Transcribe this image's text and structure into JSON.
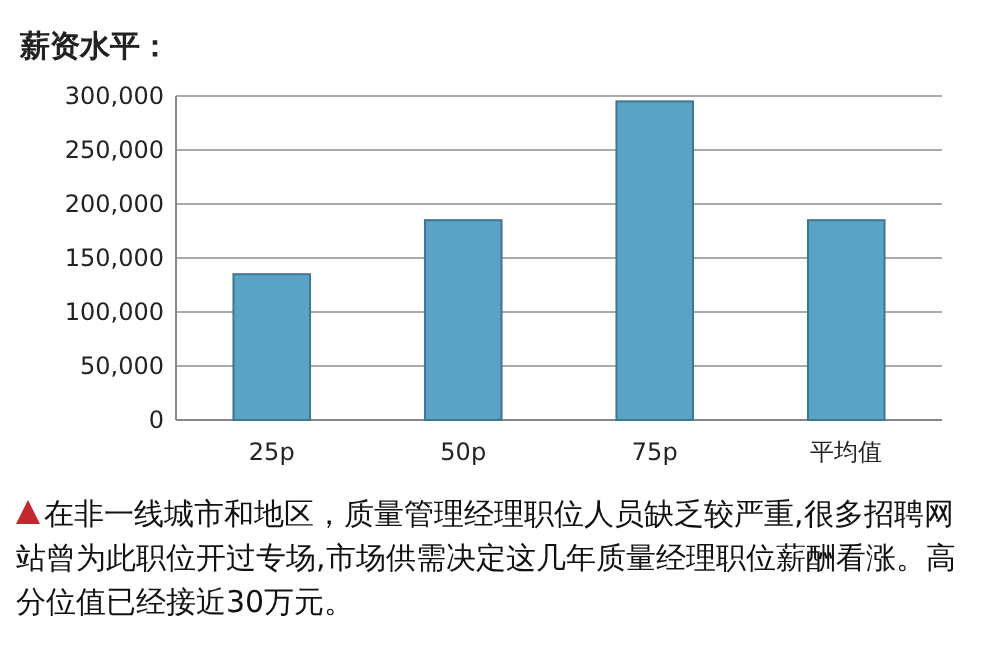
{
  "chart_data": {
    "type": "bar",
    "title": "薪资水平：",
    "categories": [
      "25p",
      "50p",
      "75p",
      "平均值"
    ],
    "values": [
      135000,
      185000,
      295000,
      185000
    ],
    "color": "#5ba3c4",
    "ylim": [
      0,
      300000
    ],
    "yticks": [
      {
        "value": 0,
        "label": "0"
      },
      {
        "value": 50000,
        "label": "50,000"
      },
      {
        "value": 100000,
        "label": "100,000"
      },
      {
        "value": 150000,
        "label": "150,000"
      },
      {
        "value": 200000,
        "label": "200,000"
      },
      {
        "value": 250000,
        "label": "250,000"
      },
      {
        "value": 300000,
        "label": "300,000"
      }
    ],
    "grid": "y",
    "annotations": [
      "在非一线城市和地区，质量管理经理职位人员缺乏较严重,很多招聘网站曾为此职位开过专场,市场供需决定这几年质量经理职位薪酬看涨。高分位值已经接近30万元。"
    ]
  }
}
